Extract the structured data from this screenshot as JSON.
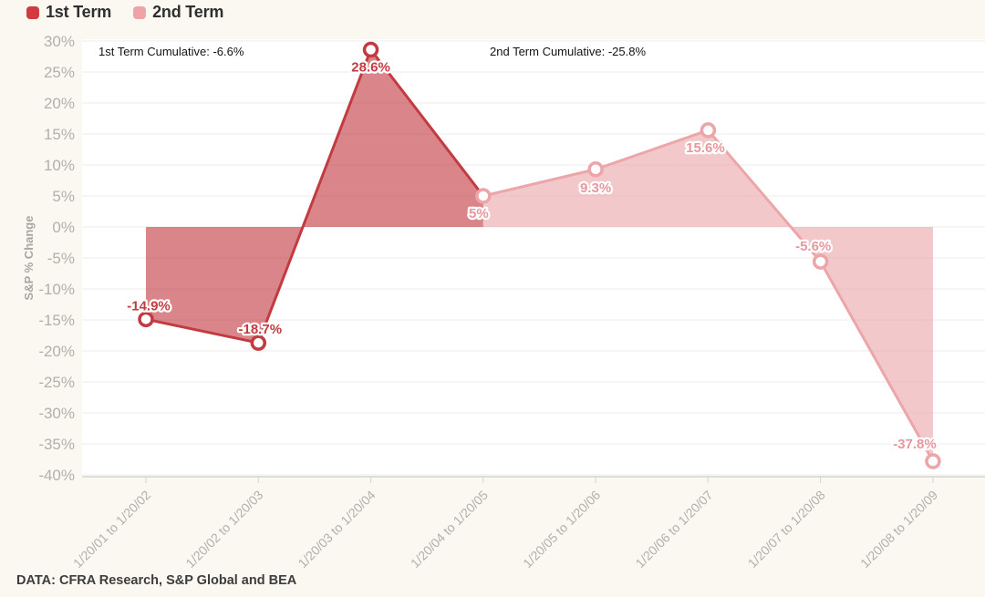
{
  "page": {
    "background_color": "#faf8f0",
    "plot_background_color": "#ffffff"
  },
  "legend": {
    "items": [
      {
        "label": "1st Term",
        "color": "#cf3b41"
      },
      {
        "label": "2nd Term",
        "color": "#efa3a6"
      }
    ]
  },
  "annotations": {
    "first_term_cumulative": "1st Term Cumulative: -6.6%",
    "second_term_cumulative": "2nd Term Cumulative: -25.8%"
  },
  "footer": {
    "source": "DATA: CFRA Research, S&P Global and BEA"
  },
  "chart_data": {
    "type": "area",
    "title": "",
    "xlabel": "",
    "ylabel": "S&P % Change",
    "ylim": [
      -40,
      30
    ],
    "ytick_step": 5,
    "ytick_suffix": "%",
    "grid": true,
    "baseline": 0,
    "legend_position": "top-left",
    "categories": [
      "1/20/01 to 1/20/02",
      "1/20/02 to 1/20/03",
      "1/20/03 to 1/20/04",
      "1/20/04 to 1/20/05",
      "1/20/05 to 1/20/06",
      "1/20/06 to 1/20/07",
      "1/20/07 to 1/20/08",
      "1/20/08 to 1/20/09"
    ],
    "values": [
      -14.9,
      -18.7,
      28.6,
      5,
      9.3,
      15.6,
      -5.6,
      -37.8
    ],
    "point_labels": [
      "-14.9%",
      "-18.7%",
      "28.6%",
      "5%",
      "9.3%",
      "15.6%",
      "-5.6%",
      "-37.8%"
    ],
    "series": [
      {
        "name": "1st Term",
        "cumulative": "-6.6%",
        "category_indices": [
          0,
          1,
          2,
          3
        ],
        "values": [
          -14.9,
          -18.7,
          28.6,
          5
        ],
        "line_color": "#c23b41",
        "fill_color": "rgba(197,62,68,0.63)",
        "label_color": "#c23b41"
      },
      {
        "name": "2nd Term",
        "cumulative": "-25.8%",
        "category_indices": [
          3,
          4,
          5,
          6,
          7
        ],
        "values": [
          5,
          9.3,
          15.6,
          -5.6,
          -37.8
        ],
        "line_color": "#eca6a9",
        "fill_color": "rgba(232,154,158,0.55)",
        "label_color": "#e7989e"
      }
    ],
    "tick_label_color": "#b2b0ac",
    "grid_color": "#ececea",
    "axis_color": "#d6d4d0"
  }
}
